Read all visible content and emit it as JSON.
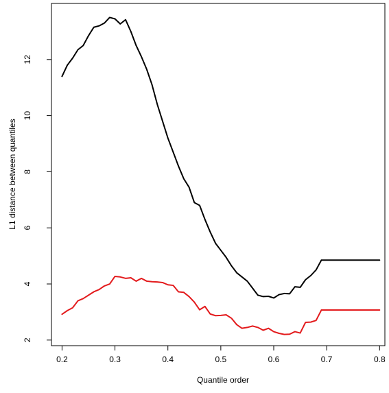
{
  "chart_data": {
    "type": "line",
    "title": "",
    "xlabel": "Quantile order",
    "ylabel": "L1 distance between quantiles",
    "xlim": [
      0.18,
      0.81
    ],
    "ylim": [
      1.8,
      14.0
    ],
    "xticks": [
      0.2,
      0.3,
      0.4,
      0.5,
      0.6,
      0.7,
      0.8
    ],
    "xtick_labels": [
      "0.2",
      "0.3",
      "0.4",
      "0.5",
      "0.6",
      "0.7",
      "0.8"
    ],
    "yticks": [
      2,
      4,
      6,
      8,
      10,
      12
    ],
    "ytick_labels": [
      "2",
      "4",
      "6",
      "8",
      "10",
      "12"
    ],
    "grid": false,
    "legend": "none",
    "x": [
      0.2,
      0.21,
      0.22,
      0.23,
      0.24,
      0.25,
      0.26,
      0.27,
      0.28,
      0.29,
      0.3,
      0.31,
      0.32,
      0.33,
      0.34,
      0.35,
      0.36,
      0.37,
      0.38,
      0.39,
      0.4,
      0.41,
      0.42,
      0.43,
      0.44,
      0.45,
      0.46,
      0.47,
      0.48,
      0.49,
      0.5,
      0.51,
      0.52,
      0.53,
      0.54,
      0.55,
      0.56,
      0.57,
      0.58,
      0.59,
      0.6,
      0.61,
      0.62,
      0.63,
      0.64,
      0.65,
      0.66,
      0.67,
      0.68,
      0.69,
      0.7,
      0.71,
      0.72,
      0.73,
      0.74,
      0.75,
      0.76,
      0.77,
      0.78,
      0.79,
      0.8
    ],
    "series": [
      {
        "color": "#000000",
        "values": [
          11.4,
          11.8,
          12.05,
          12.35,
          12.5,
          12.85,
          13.15,
          13.2,
          13.3,
          13.5,
          13.45,
          13.27,
          13.42,
          13.0,
          12.5,
          12.1,
          11.65,
          11.1,
          10.4,
          9.8,
          9.2,
          8.7,
          8.2,
          7.75,
          7.45,
          6.9,
          6.8,
          6.3,
          5.85,
          5.45,
          5.2,
          4.95,
          4.65,
          4.4,
          4.25,
          4.1,
          3.85,
          3.6,
          3.55,
          3.56,
          3.5,
          3.62,
          3.66,
          3.65,
          3.9,
          3.88,
          4.15,
          4.3,
          4.5,
          4.85,
          4.85,
          4.85,
          4.85,
          4.85,
          4.85,
          4.85,
          4.85,
          4.85,
          4.85,
          4.85,
          4.85
        ]
      },
      {
        "color": "#e31a1c",
        "values": [
          2.92,
          3.05,
          3.15,
          3.4,
          3.48,
          3.6,
          3.72,
          3.8,
          3.93,
          4.0,
          4.27,
          4.25,
          4.2,
          4.22,
          4.1,
          4.2,
          4.1,
          4.08,
          4.07,
          4.05,
          3.97,
          3.95,
          3.72,
          3.7,
          3.55,
          3.35,
          3.08,
          3.2,
          2.93,
          2.87,
          2.88,
          2.9,
          2.78,
          2.55,
          2.42,
          2.45,
          2.5,
          2.45,
          2.35,
          2.42,
          2.3,
          2.24,
          2.2,
          2.21,
          2.3,
          2.25,
          2.63,
          2.64,
          2.7,
          3.07,
          3.07,
          3.07,
          3.07,
          3.07,
          3.07,
          3.07,
          3.07,
          3.07,
          3.07,
          3.07,
          3.07
        ]
      }
    ]
  }
}
